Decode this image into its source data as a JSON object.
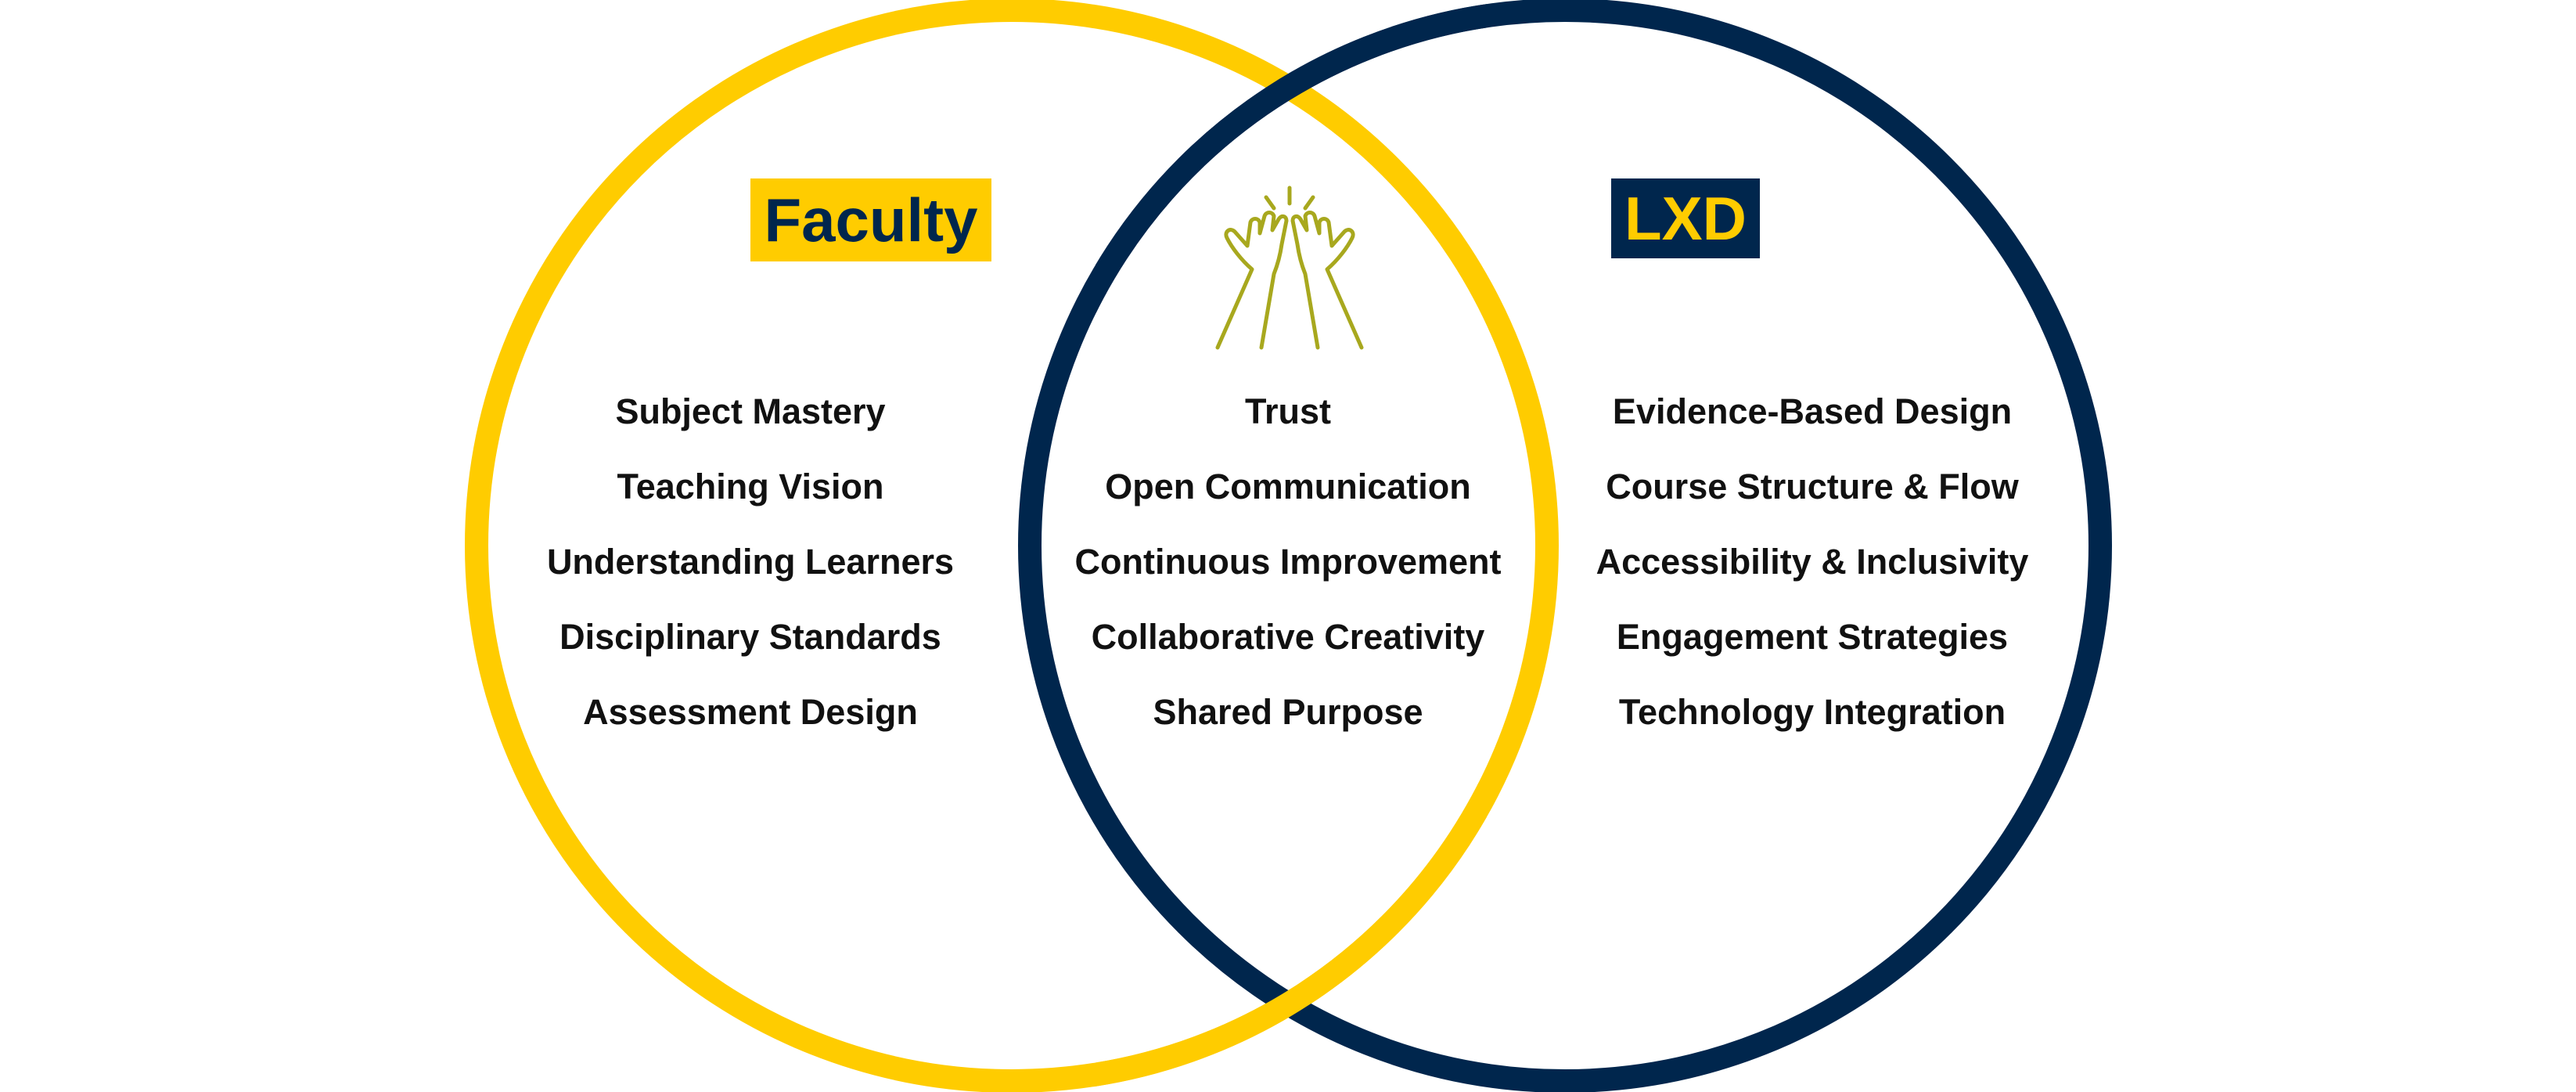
{
  "colors": {
    "faculty_accent": "#FFCC00",
    "lxd_accent": "#00264D",
    "icon": "#A8A81E",
    "text": "#111111"
  },
  "faculty": {
    "title": "Faculty",
    "items": [
      "Subject Mastery",
      "Teaching Vision",
      "Understanding Learners",
      "Disciplinary Standards",
      "Assessment Design"
    ]
  },
  "shared": {
    "icon": "high-five-icon",
    "items": [
      "Trust",
      "Open Communication",
      "Continuous Improvement",
      "Collaborative Creativity",
      "Shared Purpose"
    ]
  },
  "lxd": {
    "title": "LXD",
    "items": [
      "Evidence-Based Design",
      "Course Structure & Flow",
      "Accessibility & Inclusivity",
      "Engagement Strategies",
      "Technology Integration"
    ]
  }
}
